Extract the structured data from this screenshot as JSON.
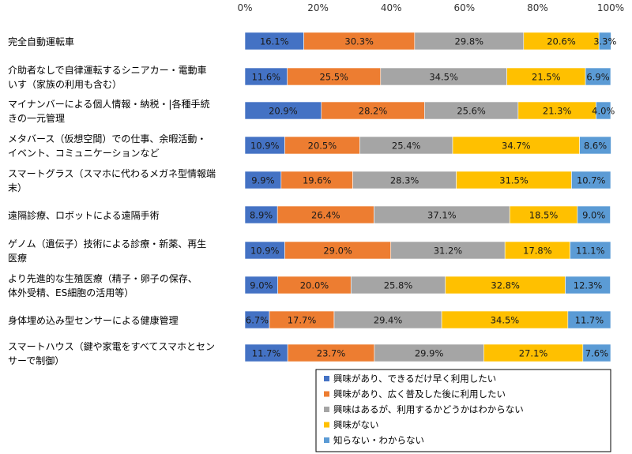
{
  "chart_data": {
    "type": "bar",
    "orientation": "horizontal",
    "stacked": "percent",
    "xlim": [
      0,
      100
    ],
    "x_ticks": [
      "0%",
      "20%",
      "40%",
      "60%",
      "80%",
      "100%"
    ],
    "grid": false,
    "legend_position": "bottom-right",
    "categories": [
      [
        "完全自動運転車"
      ],
      [
        "介助者なしで自律運転するシニアカー・電動車",
        "いす（家族の利用も含む）"
      ],
      [
        "マイナンバーによる個人情報・納税・|各種手続",
        "きの一元管理"
      ],
      [
        "メタバース（仮想空間）での仕事、余暇活動・",
        "イベント、コミュニケーションなど"
      ],
      [
        "スマートグラス（スマホに代わるメガネ型情報端",
        "末）"
      ],
      [
        "遠隔診療、ロボットによる遠隔手術"
      ],
      [
        "ゲノム（遺伝子）技術による診療・新薬、再生",
        "医療"
      ],
      [
        "より先進的な生殖医療（精子・卵子の保存、",
        "体外受精、ES細胞の活用等）"
      ],
      [
        "身体埋め込み型センサーによる健康管理"
      ],
      [
        "スマートハウス（鍵や家電をすべてスマホとセン",
        "サーで制御）"
      ]
    ],
    "series": [
      {
        "name": "興味があり、できるだけ早く利用したい",
        "color": "#4472C4",
        "values": [
          16.1,
          11.6,
          20.9,
          10.9,
          9.9,
          8.9,
          10.9,
          9.0,
          6.7,
          11.7
        ],
        "labels": [
          "16.1%",
          "11.6%",
          "20.9%",
          "10.9%",
          "9.9%",
          "8.9%",
          "10.9%",
          "9.0%",
          "6.7%",
          "11.7%"
        ]
      },
      {
        "name": "興味があり、広く普及した後に利用したい",
        "color": "#ED7D31",
        "values": [
          30.3,
          25.5,
          28.2,
          20.5,
          19.6,
          26.4,
          29.0,
          20.0,
          17.7,
          23.7
        ],
        "labels": [
          "30.3%",
          "25.5%",
          "28.2%",
          "20.5%",
          "19.6%",
          "26.4%",
          "29.0%",
          "20.0%",
          "17.7%",
          "23.7%"
        ]
      },
      {
        "name": "興味はあるが、利用するかどうかはわからない",
        "color": "#A5A5A5",
        "values": [
          29.8,
          34.5,
          25.6,
          25.4,
          28.3,
          37.1,
          31.2,
          25.8,
          29.4,
          29.9
        ],
        "labels": [
          "29.8%",
          "34.5%",
          "25.6%",
          "25.4%",
          "28.3%",
          "37.1%",
          "31.2%",
          "25.8%",
          "29.4%",
          "29.9%"
        ]
      },
      {
        "name": "興味がない",
        "color": "#FFC000",
        "values": [
          20.6,
          21.5,
          21.3,
          34.7,
          31.5,
          18.5,
          17.8,
          32.8,
          34.5,
          27.1
        ],
        "labels": [
          "20.6%",
          "21.5%",
          "21.3%",
          "34.7%",
          "31.5%",
          "18.5%",
          "17.8%",
          "32.8%",
          "34.5%",
          "27.1%"
        ]
      },
      {
        "name": "知らない・わからない",
        "color": "#5B9BD5",
        "values": [
          3.3,
          6.9,
          4.0,
          8.6,
          10.7,
          9.0,
          11.1,
          12.3,
          11.7,
          7.6
        ],
        "labels": [
          "3.3%",
          "6.9%",
          "4.0%",
          "8.6%",
          "10.7%",
          "9.0%",
          "11.1%",
          "12.3%",
          "11.7%",
          "7.6%"
        ]
      }
    ]
  }
}
